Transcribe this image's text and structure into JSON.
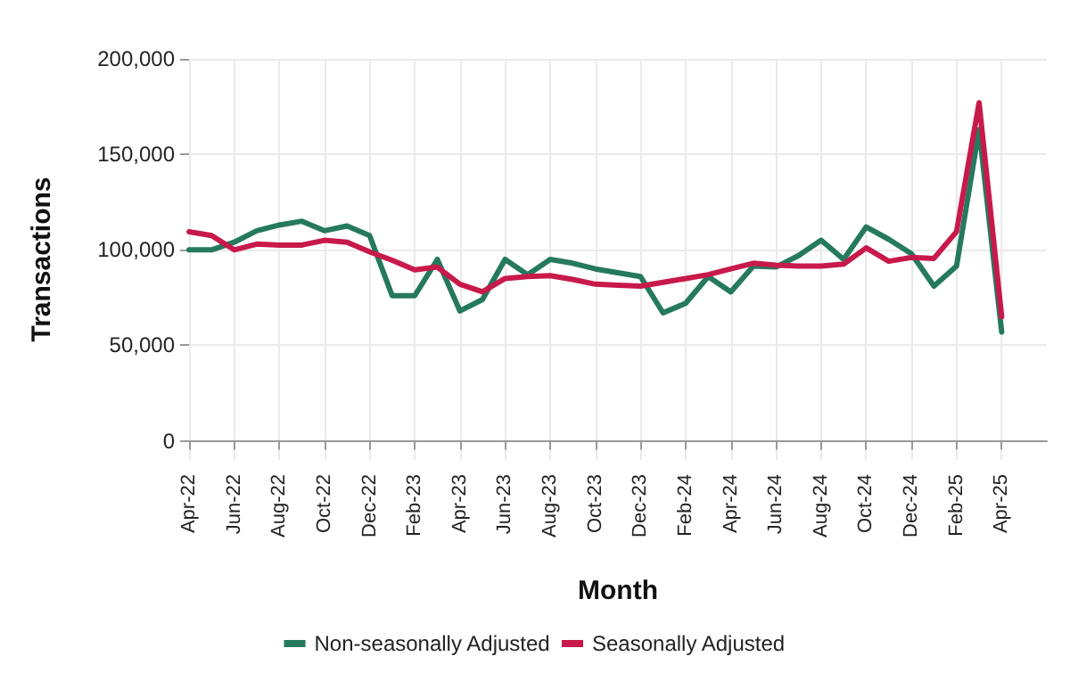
{
  "chart_data": {
    "type": "line",
    "xlabel": "Month",
    "ylabel": "Transactions",
    "x": [
      "2022-04",
      "2022-05",
      "2022-06",
      "2022-07",
      "2022-08",
      "2022-09",
      "2022-10",
      "2022-11",
      "2022-12",
      "2023-01",
      "2023-02",
      "2023-03",
      "2023-04",
      "2023-05",
      "2023-06",
      "2023-07",
      "2023-08",
      "2023-09",
      "2023-10",
      "2023-11",
      "2023-12",
      "2024-01",
      "2024-02",
      "2024-03",
      "2024-04",
      "2024-05",
      "2024-06",
      "2024-07",
      "2024-08",
      "2024-09",
      "2024-10",
      "2024-11",
      "2024-12",
      "2025-01",
      "2025-02",
      "2025-03",
      "2025-04"
    ],
    "series": [
      {
        "name": "Non-seasonally Adjusted",
        "color": "#25795c",
        "values": [
          100000,
          100000,
          104000,
          110000,
          113000,
          115000,
          110000,
          112500,
          107500,
          76000,
          76000,
          95000,
          68000,
          74000,
          95000,
          87000,
          95000,
          93000,
          90000,
          88000,
          86000,
          67000,
          72000,
          86000,
          78000,
          91500,
          91000,
          97000,
          105000,
          95000,
          112000,
          105500,
          98000,
          81000,
          91500,
          163000,
          57000
        ]
      },
      {
        "name": "Seasonally Adjusted",
        "color": "#c8194b",
        "values": [
          109500,
          107500,
          100000,
          103000,
          102500,
          102500,
          105000,
          104000,
          99000,
          94500,
          89500,
          91000,
          82000,
          78000,
          85000,
          86000,
          86500,
          84500,
          82000,
          81500,
          81000,
          83000,
          85000,
          87000,
          90000,
          93000,
          92000,
          91500,
          91500,
          92500,
          101000,
          94000,
          96000,
          95500,
          109500,
          177000,
          65000
        ]
      }
    ],
    "xlim": [
      "2022-04",
      "2025-06"
    ],
    "xticks": [
      {
        "value": "2022-04",
        "label": "Apr-22"
      },
      {
        "value": "2022-06",
        "label": "Jun-22"
      },
      {
        "value": "2022-08",
        "label": "Aug-22"
      },
      {
        "value": "2022-10",
        "label": "Oct-22"
      },
      {
        "value": "2022-12",
        "label": "Dec-22"
      },
      {
        "value": "2023-02",
        "label": "Feb-23"
      },
      {
        "value": "2023-04",
        "label": "Apr-23"
      },
      {
        "value": "2023-06",
        "label": "Jun-23"
      },
      {
        "value": "2023-08",
        "label": "Aug-23"
      },
      {
        "value": "2023-10",
        "label": "Oct-23"
      },
      {
        "value": "2023-12",
        "label": "Dec-23"
      },
      {
        "value": "2024-02",
        "label": "Feb-24"
      },
      {
        "value": "2024-04",
        "label": "Apr-24"
      },
      {
        "value": "2024-06",
        "label": "Jun-24"
      },
      {
        "value": "2024-08",
        "label": "Aug-24"
      },
      {
        "value": "2024-10",
        "label": "Oct-24"
      },
      {
        "value": "2024-12",
        "label": "Dec-24"
      },
      {
        "value": "2025-02",
        "label": "Feb-25"
      },
      {
        "value": "2025-04",
        "label": "Apr-25"
      }
    ],
    "ylim": [
      -10000,
      200000
    ],
    "yticks": [
      {
        "value": 0,
        "label": "0"
      },
      {
        "value": 50000,
        "label": "50,000"
      },
      {
        "value": 100000,
        "label": "100,000"
      },
      {
        "value": 150000,
        "label": "150,000"
      },
      {
        "value": 200000,
        "label": "200,000"
      }
    ],
    "grid": true,
    "legend": "bottom",
    "marker": "none",
    "line_style": "solid"
  }
}
